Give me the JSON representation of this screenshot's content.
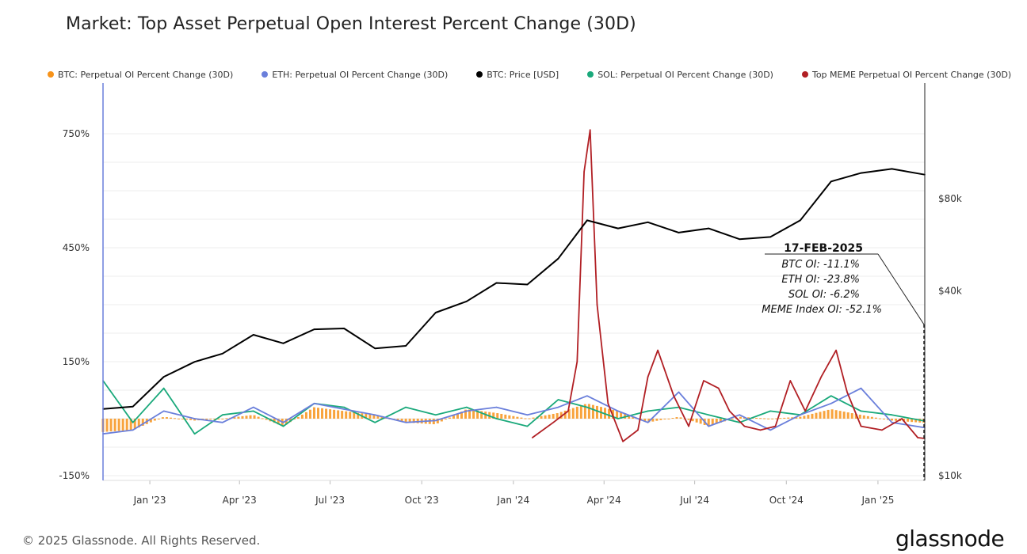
{
  "page": {
    "title": "Market: Top Asset Perpetual Open Interest Percent Change (30D)",
    "copyright": "© 2025 Glassnode. All Rights Reserved.",
    "brand": "glassnode"
  },
  "chart_data": {
    "type": "line",
    "title": "Market: Top Asset Perpetual Open Interest Percent Change (30D)",
    "x_tick_labels": [
      "Jan '23",
      "Apr '23",
      "Jul '23",
      "Oct '23",
      "Jan '24",
      "Apr '24",
      "Jul '24",
      "Oct '24",
      "Jan '25"
    ],
    "x_tick_dates": [
      "2023-01-01",
      "2023-04-01",
      "2023-07-01",
      "2023-10-01",
      "2024-01-01",
      "2024-04-01",
      "2024-07-01",
      "2024-10-01",
      "2025-01-01"
    ],
    "x_range": [
      "2022-11-15",
      "2025-02-17"
    ],
    "y_left": {
      "ticks": [
        -150,
        150,
        450,
        750
      ],
      "tick_labels": [
        "-150%",
        "150%",
        "450%",
        "750%"
      ],
      "range": [
        -150,
        850
      ]
    },
    "y_right": {
      "scale": "log",
      "ticks": [
        10000,
        40000,
        80000
      ],
      "tick_labels": [
        "$10k",
        "$40k",
        "$80k"
      ],
      "range": [
        10000,
        200000
      ]
    },
    "legend_position": "top",
    "grid": "horizontal",
    "colors": {
      "btc_oi": "#f7931a",
      "eth_oi": "#6a7fdb",
      "btc_price": "#000000",
      "sol_oi": "#1aa97b",
      "meme_oi": "#b11f24",
      "crosshair": "#6a7fdb"
    },
    "series": [
      {
        "name": "BTC: Perpetual OI Percent Change (30D)",
        "key": "btc_oi",
        "axis": "left",
        "style": "bar",
        "color": "#f7931a",
        "x": [
          "2022-11-15",
          "2022-12-15",
          "2023-01-15",
          "2023-02-15",
          "2023-03-15",
          "2023-04-15",
          "2023-05-15",
          "2023-06-15",
          "2023-07-15",
          "2023-08-15",
          "2023-09-15",
          "2023-10-15",
          "2023-11-15",
          "2023-12-15",
          "2024-01-15",
          "2024-02-15",
          "2024-03-15",
          "2024-04-15",
          "2024-05-15",
          "2024-06-15",
          "2024-07-15",
          "2024-08-15",
          "2024-09-15",
          "2024-10-15",
          "2024-11-15",
          "2024-12-15",
          "2025-01-15",
          "2025-02-17"
        ],
        "values": [
          -35,
          -30,
          5,
          -5,
          0,
          10,
          -20,
          30,
          20,
          10,
          -10,
          -15,
          25,
          15,
          0,
          15,
          40,
          20,
          -10,
          5,
          -20,
          5,
          0,
          5,
          25,
          10,
          -5,
          -11.1
        ]
      },
      {
        "name": "ETH: Perpetual OI Percent Change (30D)",
        "key": "eth_oi",
        "axis": "left",
        "color": "#6a7fdb",
        "x": [
          "2022-11-15",
          "2022-12-15",
          "2023-01-15",
          "2023-02-15",
          "2023-03-15",
          "2023-04-15",
          "2023-05-15",
          "2023-06-15",
          "2023-07-15",
          "2023-08-15",
          "2023-09-15",
          "2023-10-15",
          "2023-11-15",
          "2023-12-15",
          "2024-01-15",
          "2024-02-15",
          "2024-03-15",
          "2024-04-15",
          "2024-05-15",
          "2024-06-15",
          "2024-07-15",
          "2024-08-15",
          "2024-09-15",
          "2024-10-15",
          "2024-11-15",
          "2024-12-15",
          "2025-01-15",
          "2025-02-17"
        ],
        "values": [
          -40,
          -30,
          20,
          0,
          -10,
          30,
          -10,
          40,
          25,
          10,
          -10,
          -5,
          20,
          30,
          10,
          30,
          60,
          20,
          -10,
          70,
          -20,
          10,
          -30,
          10,
          40,
          80,
          -10,
          -23.8
        ]
      },
      {
        "name": "BTC: Price [USD]",
        "key": "btc_price",
        "axis": "right",
        "color": "#000000",
        "x": [
          "2022-11-15",
          "2022-12-15",
          "2023-01-15",
          "2023-02-15",
          "2023-03-15",
          "2023-04-15",
          "2023-05-15",
          "2023-06-15",
          "2023-07-15",
          "2023-08-15",
          "2023-09-15",
          "2023-10-15",
          "2023-11-15",
          "2023-12-15",
          "2024-01-15",
          "2024-02-15",
          "2024-03-15",
          "2024-04-15",
          "2024-05-15",
          "2024-06-15",
          "2024-07-15",
          "2024-08-15",
          "2024-09-15",
          "2024-10-15",
          "2024-11-15",
          "2024-12-15",
          "2025-01-15",
          "2025-02-17"
        ],
        "values": [
          16500,
          16800,
          21000,
          23500,
          25000,
          28800,
          27000,
          30000,
          30200,
          26000,
          26500,
          34000,
          37000,
          42500,
          42000,
          51000,
          68000,
          64000,
          67000,
          62000,
          64000,
          59000,
          60000,
          68000,
          91000,
          97000,
          100000,
          95800
        ]
      },
      {
        "name": "SOL: Perpetual OI Percent Change (30D)",
        "key": "sol_oi",
        "axis": "left",
        "color": "#1aa97b",
        "x": [
          "2022-11-15",
          "2022-12-15",
          "2023-01-15",
          "2023-02-15",
          "2023-03-15",
          "2023-04-15",
          "2023-05-15",
          "2023-06-15",
          "2023-07-15",
          "2023-08-15",
          "2023-09-15",
          "2023-10-15",
          "2023-11-15",
          "2023-12-15",
          "2024-01-15",
          "2024-02-15",
          "2024-03-15",
          "2024-04-15",
          "2024-05-15",
          "2024-06-15",
          "2024-07-15",
          "2024-08-15",
          "2024-09-15",
          "2024-10-15",
          "2024-11-15",
          "2024-12-15",
          "2025-01-15",
          "2025-02-17"
        ],
        "values": [
          100,
          -10,
          80,
          -40,
          10,
          20,
          -20,
          40,
          30,
          -10,
          30,
          10,
          30,
          0,
          -20,
          50,
          30,
          0,
          20,
          30,
          10,
          -10,
          20,
          10,
          60,
          20,
          10,
          -6.2
        ]
      },
      {
        "name": "Top MEME Perpetual OI Percent Change (30D)",
        "key": "meme_oi",
        "axis": "left",
        "color": "#b11f24",
        "x": [
          "2024-01-20",
          "2024-02-10",
          "2024-02-25",
          "2024-03-05",
          "2024-03-12",
          "2024-03-18",
          "2024-03-25",
          "2024-04-05",
          "2024-04-20",
          "2024-05-05",
          "2024-05-15",
          "2024-05-25",
          "2024-06-10",
          "2024-06-25",
          "2024-07-10",
          "2024-07-25",
          "2024-08-05",
          "2024-08-20",
          "2024-09-05",
          "2024-09-20",
          "2024-10-05",
          "2024-10-20",
          "2024-11-05",
          "2024-11-20",
          "2024-12-01",
          "2024-12-15",
          "2025-01-05",
          "2025-01-25",
          "2025-02-10",
          "2025-02-17"
        ],
        "values": [
          -50,
          -10,
          20,
          150,
          650,
          760,
          300,
          40,
          -60,
          -30,
          110,
          180,
          60,
          -20,
          100,
          80,
          20,
          -20,
          -30,
          -20,
          100,
          20,
          110,
          180,
          70,
          -20,
          -30,
          0,
          -50,
          -52.1
        ]
      }
    ],
    "annotation": {
      "date": "17-FEB-2025",
      "lines": [
        "BTC OI: -11.1%",
        "ETH OI: -23.8%",
        "SOL OI: -6.2%",
        "MEME Index OI: -52.1%"
      ]
    }
  }
}
